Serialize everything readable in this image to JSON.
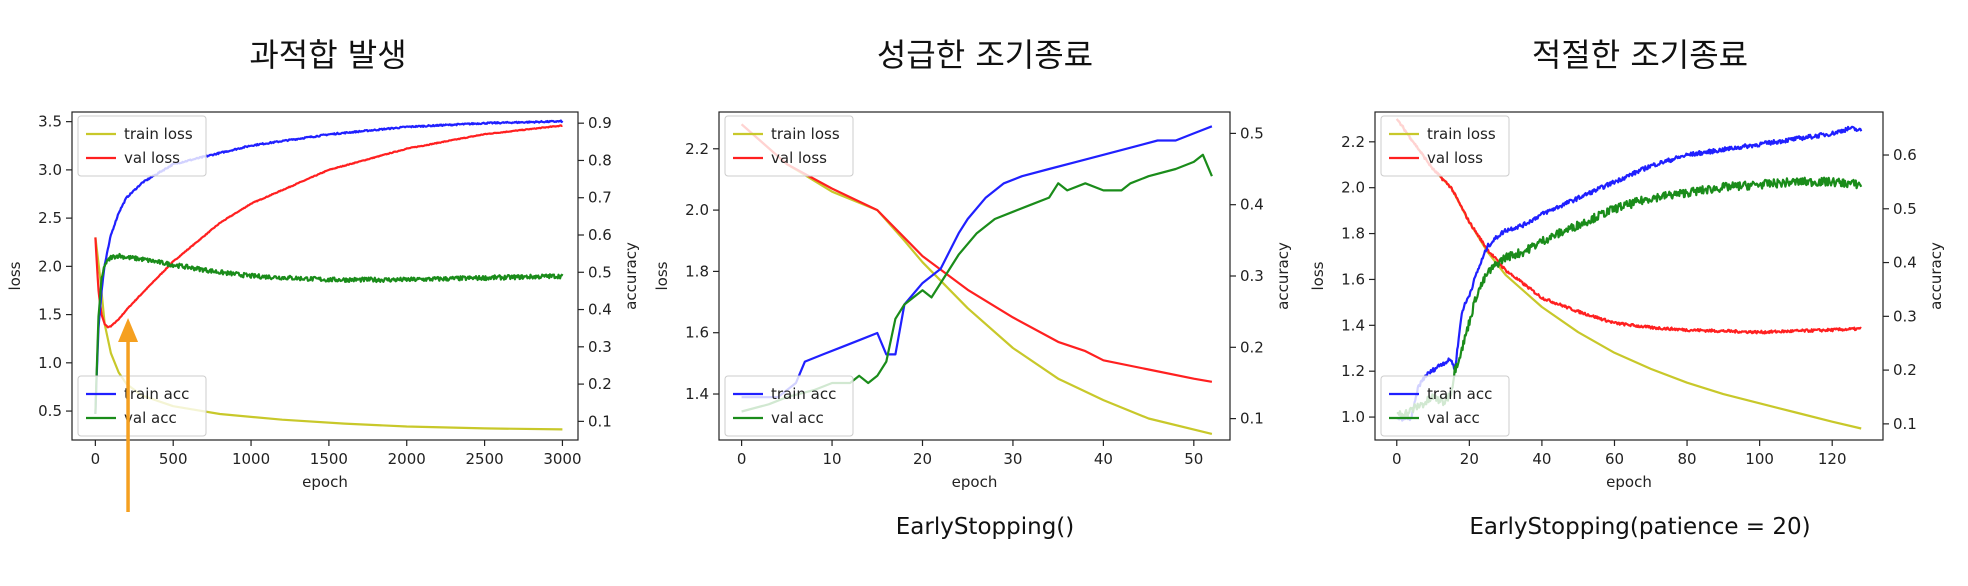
{
  "chart_data": [
    {
      "type": "line",
      "title": "과적합 발생",
      "caption": "",
      "xlabel": "epoch",
      "ylabel_left": "loss",
      "ylabel_right": "accuracy",
      "xlim": [
        -150,
        3100
      ],
      "ylim_left": [
        0.2,
        3.6
      ],
      "ylim_right": [
        0.05,
        0.93
      ],
      "xticks": [
        0,
        500,
        1000,
        1500,
        2000,
        2500,
        3000
      ],
      "yticks_left": [
        0.5,
        1.0,
        1.5,
        2.0,
        2.5,
        3.0,
        3.5
      ],
      "yticks_left_labels": [
        "0.5",
        "1.0",
        "1.5",
        "2.0",
        "2.5",
        "3.0",
        "3.5"
      ],
      "yticks_right": [
        0.1,
        0.2,
        0.3,
        0.4,
        0.5,
        0.6,
        0.7,
        0.8,
        0.9
      ],
      "yticks_right_labels": [
        "0.1",
        "0.2",
        "0.3",
        "0.4",
        "0.5",
        "0.6",
        "0.7",
        "0.8",
        "0.9"
      ],
      "legend_loss_position": "upper-left",
      "legend_acc_position": "lower-left",
      "annotation": "orange-arrow-at-min-val-loss",
      "series": [
        {
          "name": "train loss",
          "axis": "left",
          "color": "#c8c82a",
          "noise": 0,
          "x": [
            0,
            30,
            60,
            100,
            150,
            200,
            300,
            500,
            800,
            1200,
            1600,
            2000,
            2500,
            3000
          ],
          "y": [
            2.3,
            1.9,
            1.4,
            1.1,
            0.9,
            0.78,
            0.66,
            0.55,
            0.47,
            0.41,
            0.37,
            0.34,
            0.32,
            0.31
          ]
        },
        {
          "name": "val loss",
          "axis": "left",
          "color": "#ff2020",
          "noise": 0.004,
          "x": [
            0,
            20,
            40,
            60,
            80,
            100,
            150,
            200,
            300,
            500,
            800,
            1000,
            1500,
            2000,
            2500,
            3000
          ],
          "y": [
            2.3,
            1.75,
            1.5,
            1.4,
            1.37,
            1.38,
            1.45,
            1.55,
            1.72,
            2.05,
            2.45,
            2.65,
            3.0,
            3.22,
            3.37,
            3.46
          ]
        },
        {
          "name": "train acc",
          "axis": "right",
          "color": "#2020ff",
          "noise": 0.002,
          "x": [
            0,
            20,
            40,
            60,
            100,
            150,
            200,
            300,
            500,
            800,
            1000,
            1500,
            2000,
            2500,
            3000
          ],
          "y": [
            0.12,
            0.35,
            0.45,
            0.52,
            0.6,
            0.66,
            0.7,
            0.74,
            0.79,
            0.82,
            0.84,
            0.87,
            0.89,
            0.9,
            0.905
          ]
        },
        {
          "name": "val acc",
          "axis": "right",
          "color": "#1a8c1a",
          "noise": 0.006,
          "x": [
            0,
            20,
            40,
            60,
            100,
            150,
            200,
            300,
            500,
            800,
            1000,
            1500,
            2000,
            2500,
            3000
          ],
          "y": [
            0.12,
            0.38,
            0.48,
            0.52,
            0.54,
            0.545,
            0.54,
            0.535,
            0.52,
            0.5,
            0.49,
            0.48,
            0.48,
            0.485,
            0.49
          ]
        }
      ]
    },
    {
      "type": "line",
      "title": "성급한 조기종료",
      "caption": "EarlyStopping()",
      "xlabel": "epoch",
      "ylabel_left": "loss",
      "ylabel_right": "accuracy",
      "xlim": [
        -2.5,
        54
      ],
      "ylim_left": [
        1.25,
        2.32
      ],
      "ylim_right": [
        0.07,
        0.53
      ],
      "xticks": [
        0,
        10,
        20,
        30,
        40,
        50
      ],
      "yticks_left": [
        1.4,
        1.6,
        1.8,
        2.0,
        2.2
      ],
      "yticks_left_labels": [
        "1.4",
        "1.6",
        "1.8",
        "2.0",
        "2.2"
      ],
      "yticks_right": [
        0.1,
        0.2,
        0.3,
        0.4,
        0.5
      ],
      "yticks_right_labels": [
        "0.1",
        "0.2",
        "0.3",
        "0.4",
        "0.5"
      ],
      "legend_loss_position": "upper-left",
      "legend_acc_position": "lower-left",
      "series": [
        {
          "name": "train loss",
          "axis": "left",
          "color": "#c8c82a",
          "noise": 0,
          "x": [
            0,
            5,
            10,
            15,
            18,
            20,
            25,
            30,
            35,
            40,
            45,
            52
          ],
          "y": [
            2.28,
            2.15,
            2.06,
            2.0,
            1.9,
            1.83,
            1.68,
            1.55,
            1.45,
            1.38,
            1.32,
            1.27
          ]
        },
        {
          "name": "val loss",
          "axis": "left",
          "color": "#ff2020",
          "noise": 0,
          "x": [
            0,
            5,
            10,
            15,
            18,
            20,
            25,
            30,
            35,
            38,
            40,
            45,
            50,
            52
          ],
          "y": [
            2.28,
            2.15,
            2.07,
            2.0,
            1.91,
            1.85,
            1.74,
            1.65,
            1.57,
            1.54,
            1.51,
            1.48,
            1.45,
            1.44
          ]
        },
        {
          "name": "train acc",
          "axis": "right",
          "color": "#2020ff",
          "noise": 0,
          "x": [
            0,
            4,
            6,
            7,
            9,
            11,
            13,
            15,
            16,
            17,
            18,
            20,
            22,
            24,
            25,
            27,
            29,
            31,
            34,
            37,
            40,
            43,
            46,
            48,
            50,
            52
          ],
          "y": [
            0.13,
            0.13,
            0.15,
            0.18,
            0.19,
            0.2,
            0.21,
            0.22,
            0.19,
            0.19,
            0.26,
            0.29,
            0.31,
            0.36,
            0.38,
            0.41,
            0.43,
            0.44,
            0.45,
            0.46,
            0.47,
            0.48,
            0.49,
            0.49,
            0.5,
            0.51
          ]
        },
        {
          "name": "val acc",
          "axis": "right",
          "color": "#1a8c1a",
          "noise": 0,
          "x": [
            0,
            3,
            5,
            8,
            10,
            12,
            13,
            14,
            15,
            16,
            17,
            18,
            20,
            21,
            22,
            24,
            26,
            28,
            30,
            32,
            34,
            35,
            36,
            38,
            40,
            42,
            43,
            45,
            48,
            50,
            51,
            52
          ],
          "y": [
            0.11,
            0.12,
            0.13,
            0.14,
            0.15,
            0.15,
            0.16,
            0.15,
            0.16,
            0.18,
            0.24,
            0.26,
            0.28,
            0.27,
            0.29,
            0.33,
            0.36,
            0.38,
            0.39,
            0.4,
            0.41,
            0.43,
            0.42,
            0.43,
            0.42,
            0.42,
            0.43,
            0.44,
            0.45,
            0.46,
            0.47,
            0.44
          ]
        }
      ]
    },
    {
      "type": "line",
      "title": "적절한 조기종료",
      "caption": "EarlyStopping(patience = 20)",
      "xlabel": "epoch",
      "ylabel_left": "loss",
      "ylabel_right": "accuracy",
      "xlim": [
        -6,
        134
      ],
      "ylim_left": [
        0.9,
        2.33
      ],
      "ylim_right": [
        0.07,
        0.68
      ],
      "xticks": [
        0,
        20,
        40,
        60,
        80,
        100,
        120
      ],
      "yticks_left": [
        1.0,
        1.2,
        1.4,
        1.6,
        1.8,
        2.0,
        2.2
      ],
      "yticks_left_labels": [
        "1.0",
        "1.2",
        "1.4",
        "1.6",
        "1.8",
        "2.0",
        "2.2"
      ],
      "yticks_right": [
        0.1,
        0.2,
        0.3,
        0.4,
        0.5,
        0.6
      ],
      "yticks_right_labels": [
        "0.1",
        "0.2",
        "0.3",
        "0.4",
        "0.5",
        "0.6"
      ],
      "legend_loss_position": "upper-left",
      "legend_acc_position": "lower-left",
      "series": [
        {
          "name": "train loss",
          "axis": "left",
          "color": "#c8c82a",
          "noise": 0,
          "x": [
            0,
            10,
            15,
            20,
            25,
            30,
            40,
            50,
            60,
            70,
            80,
            90,
            100,
            110,
            120,
            128
          ],
          "y": [
            2.3,
            2.08,
            2.0,
            1.85,
            1.72,
            1.62,
            1.48,
            1.37,
            1.28,
            1.21,
            1.15,
            1.1,
            1.06,
            1.02,
            0.98,
            0.95
          ]
        },
        {
          "name": "val loss",
          "axis": "left",
          "color": "#ff2020",
          "noise": 0.006,
          "x": [
            0,
            10,
            15,
            20,
            25,
            30,
            35,
            40,
            50,
            60,
            70,
            80,
            90,
            100,
            110,
            120,
            128
          ],
          "y": [
            2.3,
            2.08,
            2.0,
            1.85,
            1.73,
            1.64,
            1.58,
            1.52,
            1.46,
            1.41,
            1.39,
            1.38,
            1.375,
            1.37,
            1.375,
            1.38,
            1.385
          ]
        },
        {
          "name": "train acc",
          "axis": "right",
          "color": "#2020ff",
          "noise": 0.004,
          "x": [
            0,
            4,
            6,
            8,
            12,
            15,
            16,
            18,
            20,
            22,
            25,
            28,
            30,
            35,
            40,
            50,
            60,
            70,
            80,
            90,
            100,
            110,
            120,
            125,
            128
          ],
          "y": [
            0.11,
            0.11,
            0.17,
            0.19,
            0.21,
            0.22,
            0.2,
            0.31,
            0.34,
            0.38,
            0.43,
            0.45,
            0.46,
            0.47,
            0.49,
            0.52,
            0.55,
            0.58,
            0.6,
            0.61,
            0.62,
            0.63,
            0.64,
            0.65,
            0.645
          ]
        },
        {
          "name": "val acc",
          "axis": "right",
          "color": "#1a8c1a",
          "noise": 0.008,
          "x": [
            0,
            3,
            5,
            8,
            10,
            13,
            15,
            16,
            18,
            20,
            22,
            25,
            28,
            30,
            35,
            40,
            50,
            60,
            70,
            80,
            90,
            100,
            110,
            120,
            128
          ],
          "y": [
            0.12,
            0.12,
            0.13,
            0.14,
            0.15,
            0.14,
            0.16,
            0.2,
            0.24,
            0.29,
            0.34,
            0.38,
            0.4,
            0.41,
            0.42,
            0.44,
            0.47,
            0.5,
            0.52,
            0.53,
            0.54,
            0.545,
            0.55,
            0.55,
            0.545
          ]
        }
      ]
    }
  ]
}
